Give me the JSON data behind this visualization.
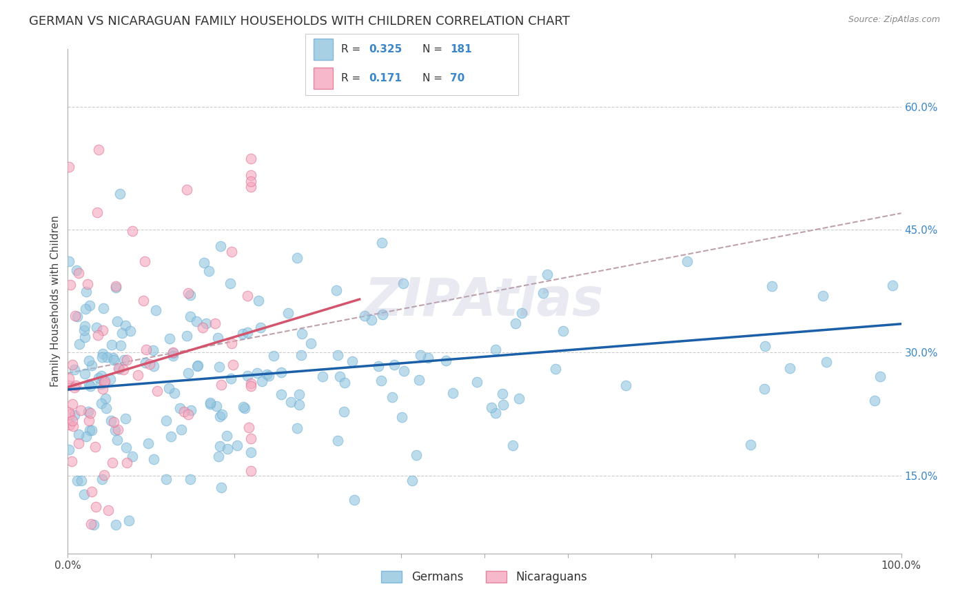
{
  "title": "GERMAN VS NICARAGUAN FAMILY HOUSEHOLDS WITH CHILDREN CORRELATION CHART",
  "source": "Source: ZipAtlas.com",
  "ylabel": "Family Households with Children",
  "xlim": [
    0.0,
    1.0
  ],
  "ylim": [
    0.055,
    0.67
  ],
  "yticks": [
    0.15,
    0.3,
    0.45,
    0.6
  ],
  "ytick_labels": [
    "15.0%",
    "30.0%",
    "45.0%",
    "60.0%"
  ],
  "xticks": [
    0.0,
    0.1,
    0.2,
    0.3,
    0.4,
    0.5,
    0.6,
    0.7,
    0.8,
    0.9,
    1.0
  ],
  "xtick_labels": [
    "0.0%",
    "",
    "",
    "",
    "",
    "",
    "",
    "",
    "",
    "",
    "100.0%"
  ],
  "german_color": "#92c5de",
  "german_edge_color": "#6baed6",
  "nicaraguan_color": "#f4a6bd",
  "nicaraguan_edge_color": "#e07090",
  "german_R": 0.325,
  "german_N": 181,
  "nicaraguan_R": 0.171,
  "nicaraguan_N": 70,
  "legend_label_german": "Germans",
  "legend_label_nicaraguan": "Nicaraguans",
  "title_fontsize": 13,
  "axis_label_fontsize": 11,
  "tick_fontsize": 11,
  "watermark": "ZIPAtlas",
  "background_color": "#ffffff",
  "blue_trend_start_x": 0.0,
  "blue_trend_start_y": 0.255,
  "blue_trend_end_x": 1.0,
  "blue_trend_end_y": 0.335,
  "pink_trend_start_x": 0.0,
  "pink_trend_start_y": 0.258,
  "pink_trend_end_x": 0.35,
  "pink_trend_end_y": 0.365,
  "gray_trend_start_x": 0.0,
  "gray_trend_start_y": 0.275,
  "gray_trend_end_x": 1.0,
  "gray_trend_end_y": 0.47,
  "blue_line_color": "#1a5fa8",
  "pink_line_color": "#d4546e",
  "gray_line_color": "#c0a0a8",
  "legend_R_color": "#3a86c8",
  "legend_N_color": "#3a86c8",
  "right_tick_color": "#3a86c8"
}
